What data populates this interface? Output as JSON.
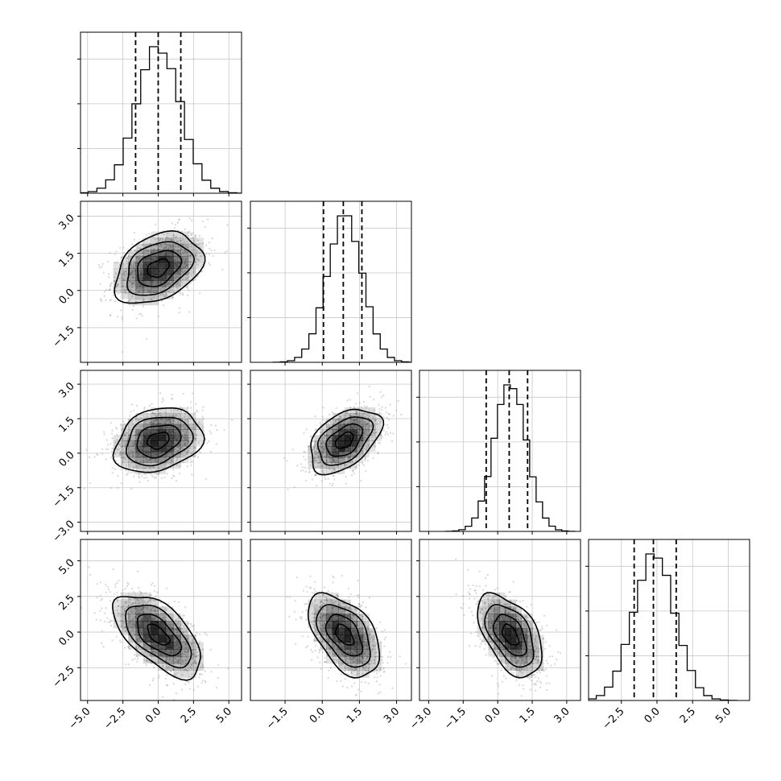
{
  "chart_data": {
    "type": "corner",
    "n_params": 4,
    "params": [
      {
        "mean": 0.0,
        "sd": 1.55,
        "range": [
          -5.5,
          5.9
        ],
        "ticks": [
          -5.0,
          -2.5,
          0.0,
          2.5,
          5.0
        ],
        "tick_labels": [
          "−5.0",
          "−2.5",
          "0.0",
          "2.5",
          "5.0"
        ],
        "quantiles": [
          -1.6,
          0.0,
          1.6
        ]
      },
      {
        "mean": 0.9,
        "sd": 0.72,
        "range": [
          -2.9,
          3.6
        ],
        "ticks": [
          -1.5,
          0.0,
          1.5,
          3.0
        ],
        "tick_labels": [
          "−1.5",
          "0.0",
          "1.5",
          "3.0"
        ],
        "quantiles": [
          0.05,
          0.85,
          1.6
        ]
      },
      {
        "mean": 0.55,
        "sd": 0.7,
        "range": [
          -3.4,
          3.6
        ],
        "ticks": [
          -3.0,
          -1.5,
          0.0,
          1.5,
          3.0
        ],
        "tick_labels": [
          "−3.0",
          "−1.5",
          "0.0",
          "1.5",
          "3.0"
        ],
        "quantiles": [
          -0.5,
          0.5,
          1.3
        ]
      },
      {
        "mean": -0.2,
        "sd": 1.45,
        "range": [
          -4.8,
          6.5
        ],
        "ticks": [
          -2.5,
          0.0,
          2.5,
          5.0
        ],
        "tick_labels": [
          "−2.5",
          "0.0",
          "2.5",
          "5.0"
        ],
        "quantiles": [
          -1.6,
          -0.25,
          1.35
        ]
      }
    ],
    "correlations": [
      {
        "i": 1,
        "j": 0,
        "rho": 0.35
      },
      {
        "i": 2,
        "j": 0,
        "rho": 0.25
      },
      {
        "i": 2,
        "j": 1,
        "rho": 0.45
      },
      {
        "i": 3,
        "j": 0,
        "rho": -0.6
      },
      {
        "i": 3,
        "j": 1,
        "rho": -0.5
      },
      {
        "i": 3,
        "j": 2,
        "rho": -0.5
      }
    ],
    "histogram_bins": 20,
    "hist_y_gridlines": 3,
    "contour_levels": [
      "0.5σ",
      "1σ",
      "1.5σ",
      "2σ"
    ],
    "diagonal_x_ticklabels_shown_on": "bottom row only",
    "y_ticklabels_shown_on": "left column (rows 2-4)",
    "grid": true,
    "colors": {
      "points": "#8c8c8c",
      "density": "#000000",
      "lines": "#000000",
      "grid": "#c8c8c8"
    }
  }
}
